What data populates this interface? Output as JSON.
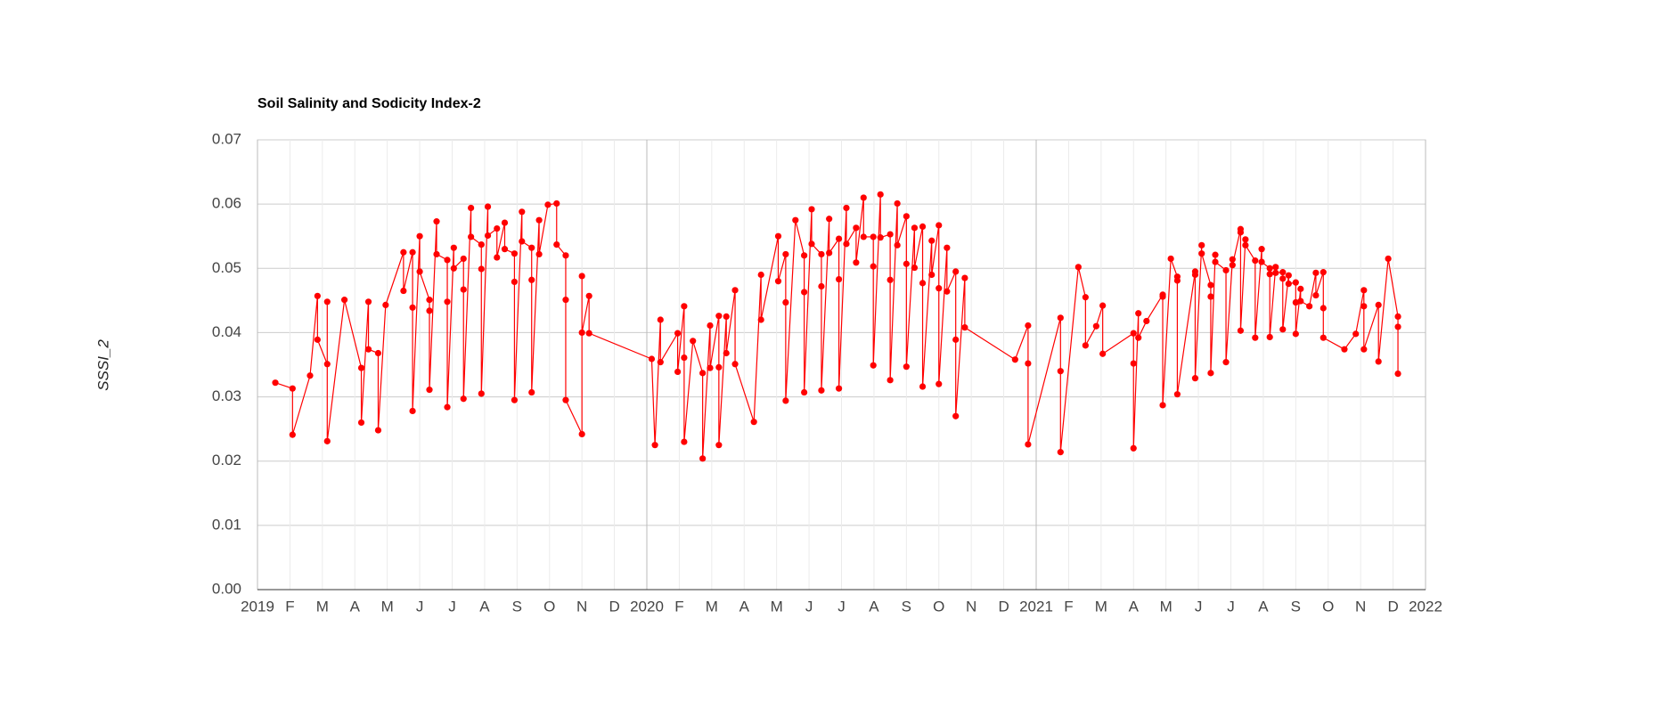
{
  "chart_data": {
    "type": "line",
    "title": "Soil Salinity and Sodicity Index-2",
    "y_label": "SSSI_2",
    "color": "#ff0000",
    "grid": true,
    "xlim": [
      0,
      36
    ],
    "xticks": [
      {
        "value": 0,
        "label": "2019"
      },
      {
        "value": 1,
        "label": "F"
      },
      {
        "value": 2,
        "label": "M"
      },
      {
        "value": 3,
        "label": "A"
      },
      {
        "value": 4,
        "label": "M"
      },
      {
        "value": 5,
        "label": "J"
      },
      {
        "value": 6,
        "label": "J"
      },
      {
        "value": 7,
        "label": "A"
      },
      {
        "value": 8,
        "label": "S"
      },
      {
        "value": 9,
        "label": "O"
      },
      {
        "value": 10,
        "label": "N"
      },
      {
        "value": 11,
        "label": "D"
      },
      {
        "value": 12,
        "label": "2020"
      },
      {
        "value": 13,
        "label": "F"
      },
      {
        "value": 14,
        "label": "M"
      },
      {
        "value": 15,
        "label": "A"
      },
      {
        "value": 16,
        "label": "M"
      },
      {
        "value": 17,
        "label": "J"
      },
      {
        "value": 18,
        "label": "J"
      },
      {
        "value": 19,
        "label": "A"
      },
      {
        "value": 20,
        "label": "S"
      },
      {
        "value": 21,
        "label": "O"
      },
      {
        "value": 22,
        "label": "N"
      },
      {
        "value": 23,
        "label": "D"
      },
      {
        "value": 24,
        "label": "2021"
      },
      {
        "value": 25,
        "label": "F"
      },
      {
        "value": 26,
        "label": "M"
      },
      {
        "value": 27,
        "label": "A"
      },
      {
        "value": 28,
        "label": "M"
      },
      {
        "value": 29,
        "label": "J"
      },
      {
        "value": 30,
        "label": "J"
      },
      {
        "value": 31,
        "label": "A"
      },
      {
        "value": 32,
        "label": "S"
      },
      {
        "value": 33,
        "label": "O"
      },
      {
        "value": 34,
        "label": "N"
      },
      {
        "value": 35,
        "label": "D"
      },
      {
        "value": 36,
        "label": "2022"
      }
    ],
    "ylim": [
      0,
      0.07
    ],
    "yticks": [
      {
        "value": 0,
        "label": "0.00"
      },
      {
        "value": 0.01,
        "label": "0.01"
      },
      {
        "value": 0.02,
        "label": "0.02"
      },
      {
        "value": 0.03,
        "label": "0.03"
      },
      {
        "value": 0.04,
        "label": "0.04"
      },
      {
        "value": 0.05,
        "label": "0.05"
      },
      {
        "value": 0.06,
        "label": "0.06"
      },
      {
        "value": 0.07,
        "label": "0.07"
      }
    ],
    "x": [
      0.55,
      1.08,
      1.08,
      1.62,
      1.85,
      1.85,
      2.15,
      2.15,
      2.15,
      2.68,
      3.2,
      3.2,
      3.42,
      3.42,
      3.72,
      3.72,
      3.95,
      4.5,
      4.5,
      4.78,
      4.78,
      4.78,
      5.0,
      5.0,
      5.3,
      5.3,
      5.3,
      5.52,
      5.52,
      5.85,
      5.85,
      5.85,
      6.05,
      6.05,
      6.35,
      6.35,
      6.35,
      6.58,
      6.58,
      6.9,
      6.9,
      6.9,
      7.1,
      7.1,
      7.38,
      7.38,
      7.62,
      7.62,
      7.92,
      7.92,
      7.92,
      8.15,
      8.15,
      8.45,
      8.45,
      8.45,
      8.68,
      8.68,
      8.95,
      9.22,
      9.22,
      9.5,
      9.5,
      9.5,
      10.0,
      10.0,
      10.0,
      10.22,
      10.22,
      12.15,
      12.25,
      12.42,
      12.42,
      12.95,
      12.95,
      13.15,
      13.15,
      13.15,
      13.42,
      13.72,
      13.72,
      13.95,
      13.95,
      14.22,
      14.22,
      14.22,
      14.45,
      14.45,
      14.72,
      14.72,
      15.3,
      15.52,
      15.52,
      16.05,
      16.05,
      16.28,
      16.28,
      16.28,
      16.58,
      16.85,
      16.85,
      16.85,
      17.08,
      17.08,
      17.38,
      17.38,
      17.38,
      17.62,
      17.62,
      17.92,
      17.92,
      17.92,
      18.15,
      18.15,
      18.45,
      18.45,
      18.68,
      18.68,
      18.98,
      18.98,
      18.98,
      19.2,
      19.2,
      19.5,
      19.5,
      19.5,
      19.72,
      19.72,
      20.0,
      20.0,
      20.0,
      20.25,
      20.25,
      20.5,
      20.5,
      20.5,
      20.78,
      20.78,
      21.0,
      21.0,
      21.0,
      21.25,
      21.25,
      21.52,
      21.52,
      21.52,
      21.8,
      21.8,
      23.35,
      23.75,
      23.75,
      23.75,
      24.75,
      24.75,
      24.75,
      25.3,
      25.52,
      25.52,
      25.85,
      26.05,
      26.05,
      27.0,
      27.0,
      27.0,
      27.15,
      27.15,
      27.4,
      27.9,
      27.9,
      27.9,
      28.15,
      28.35,
      28.35,
      28.35,
      28.9,
      28.9,
      28.9,
      29.1,
      29.1,
      29.38,
      29.38,
      29.38,
      29.52,
      29.52,
      29.85,
      29.85,
      30.05,
      30.05,
      30.3,
      30.3,
      30.3,
      30.45,
      30.45,
      30.75,
      30.75,
      30.95,
      30.95,
      31.2,
      31.2,
      31.2,
      31.38,
      31.38,
      31.6,
      31.6,
      31.6,
      31.78,
      31.78,
      32.0,
      32.0,
      32.0,
      32.15,
      32.15,
      32.42,
      32.62,
      32.62,
      32.85,
      32.85,
      32.85,
      33.5,
      33.85,
      34.1,
      34.1,
      34.1,
      34.55,
      34.55,
      34.85,
      35.15,
      35.15,
      35.15
    ],
    "values": [
      0.0322,
      0.0313,
      0.0241,
      0.0333,
      0.0457,
      0.0389,
      0.0351,
      0.0448,
      0.0231,
      0.0451,
      0.0345,
      0.026,
      0.0448,
      0.0374,
      0.0368,
      0.0248,
      0.0443,
      0.0525,
      0.0465,
      0.0525,
      0.0439,
      0.0278,
      0.055,
      0.0495,
      0.0451,
      0.0434,
      0.0311,
      0.0573,
      0.0522,
      0.0513,
      0.0448,
      0.0284,
      0.0532,
      0.05,
      0.0515,
      0.0467,
      0.0297,
      0.0594,
      0.0549,
      0.0537,
      0.0499,
      0.0305,
      0.0596,
      0.0551,
      0.0562,
      0.0517,
      0.0571,
      0.053,
      0.0523,
      0.0479,
      0.0295,
      0.0588,
      0.0542,
      0.0532,
      0.0482,
      0.0307,
      0.0575,
      0.0522,
      0.0599,
      0.0601,
      0.0537,
      0.052,
      0.0451,
      0.0295,
      0.0242,
      0.0488,
      0.04,
      0.0457,
      0.0399,
      0.0359,
      0.0225,
      0.042,
      0.0354,
      0.0399,
      0.0339,
      0.0441,
      0.0361,
      0.023,
      0.0387,
      0.0337,
      0.0204,
      0.0411,
      0.0345,
      0.0426,
      0.0346,
      0.0225,
      0.0425,
      0.0368,
      0.0466,
      0.0351,
      0.0261,
      0.049,
      0.042,
      0.055,
      0.048,
      0.0522,
      0.0447,
      0.0294,
      0.0575,
      0.052,
      0.0463,
      0.0307,
      0.0592,
      0.0538,
      0.0522,
      0.0472,
      0.031,
      0.0577,
      0.0524,
      0.0546,
      0.0483,
      0.0313,
      0.0594,
      0.0538,
      0.0563,
      0.0509,
      0.061,
      0.0549,
      0.0549,
      0.0503,
      0.0349,
      0.0615,
      0.0548,
      0.0553,
      0.0482,
      0.0326,
      0.0601,
      0.0536,
      0.0581,
      0.0507,
      0.0347,
      0.0563,
      0.0501,
      0.0565,
      0.0477,
      0.0316,
      0.0543,
      0.049,
      0.0567,
      0.0469,
      0.032,
      0.0532,
      0.0464,
      0.0495,
      0.0389,
      0.027,
      0.0485,
      0.0408,
      0.0358,
      0.0411,
      0.0352,
      0.0226,
      0.0423,
      0.034,
      0.0214,
      0.0502,
      0.0455,
      0.038,
      0.041,
      0.0442,
      0.0367,
      0.0399,
      0.0352,
      0.022,
      0.043,
      0.0392,
      0.0418,
      0.0459,
      0.0456,
      0.0287,
      0.0515,
      0.0487,
      0.0481,
      0.0304,
      0.0495,
      0.049,
      0.0329,
      0.0536,
      0.0523,
      0.0474,
      0.0456,
      0.0337,
      0.0521,
      0.051,
      0.0497,
      0.0354,
      0.0514,
      0.0505,
      0.0561,
      0.0556,
      0.0403,
      0.0545,
      0.0536,
      0.0512,
      0.0392,
      0.053,
      0.051,
      0.05,
      0.0491,
      0.0393,
      0.0502,
      0.0493,
      0.0494,
      0.0484,
      0.0405,
      0.0489,
      0.0476,
      0.0478,
      0.0447,
      0.0398,
      0.0468,
      0.0449,
      0.0441,
      0.0493,
      0.0458,
      0.0494,
      0.0438,
      0.0392,
      0.0374,
      0.0398,
      0.0466,
      0.0441,
      0.0374,
      0.0443,
      0.0355,
      0.0515,
      0.0425,
      0.0409,
      0.0336
    ]
  }
}
